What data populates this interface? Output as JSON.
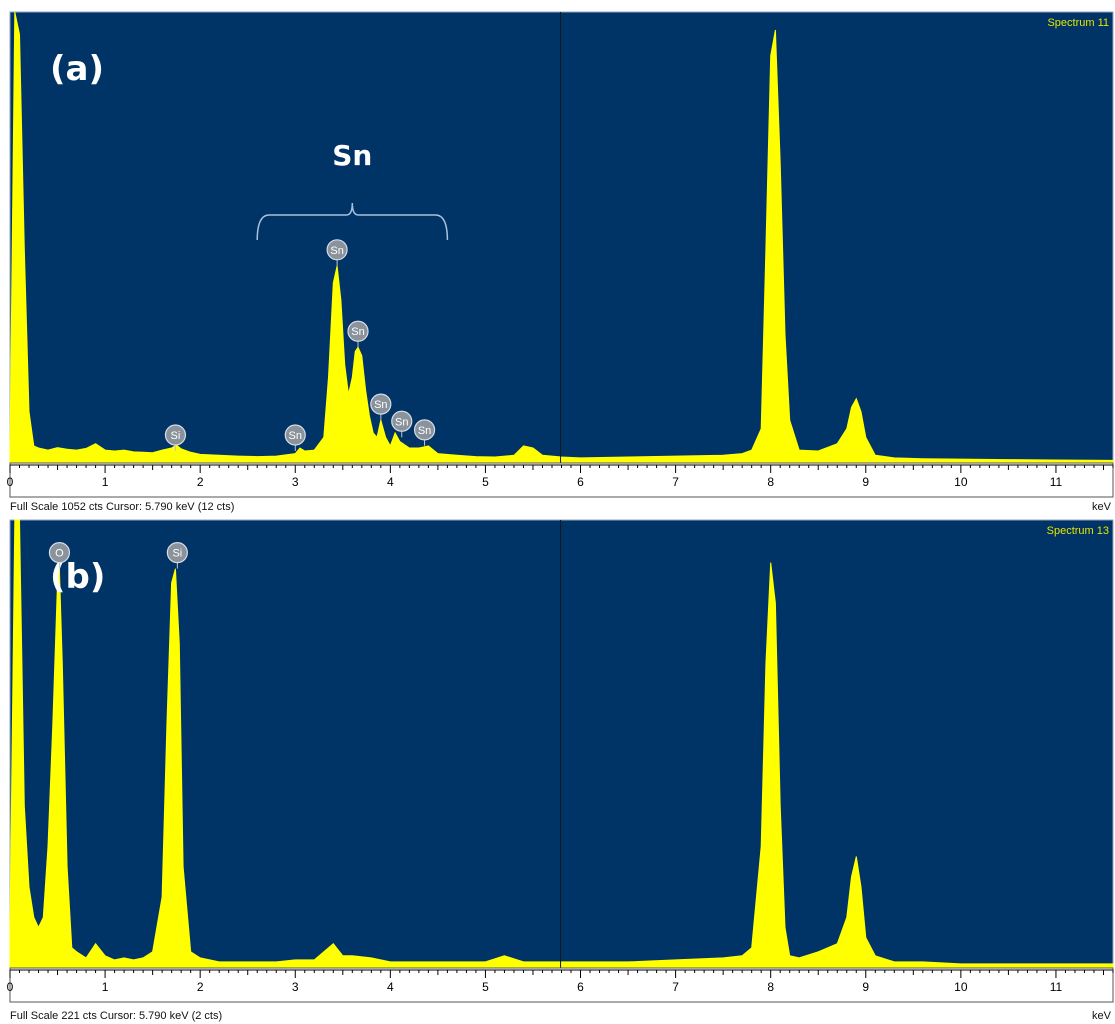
{
  "colors": {
    "plot_bg": "#003366",
    "spectrum": "#ffff00",
    "panel_border": "#8fa6c0",
    "label_text": "#ffffff",
    "spectrum_title": "#e6e600"
  },
  "chart_data": [
    {
      "type": "area",
      "panel_label": "(a)",
      "spectrum_name": "Spectrum 11",
      "xlabel": "keV",
      "xlim": [
        0,
        11.6
      ],
      "ylim": [
        0,
        1052
      ],
      "xticks": [
        "0",
        "1",
        "2",
        "3",
        "4",
        "5",
        "6",
        "7",
        "8",
        "9",
        "10",
        "11"
      ],
      "cursor_kev": 5.79,
      "footer": "Full Scale 1052 cts  Cursor: 5.790 keV (12 cts)",
      "group_label": {
        "text": "Sn",
        "x_start": 2.6,
        "x_end": 4.6
      },
      "series": [
        {
          "x": [
            0,
            0.05,
            0.1,
            0.15,
            0.2,
            0.25,
            0.3,
            0.4,
            0.5,
            0.6,
            0.7,
            0.8,
            0.9,
            1.0,
            1.1,
            1.2,
            1.3,
            1.4,
            1.5,
            1.6,
            1.7,
            1.75,
            1.8,
            1.9,
            2.0,
            2.2,
            2.4,
            2.6,
            2.8,
            3.0,
            3.05,
            3.1,
            3.2,
            3.3,
            3.35,
            3.4,
            3.44,
            3.48,
            3.52,
            3.56,
            3.6,
            3.63,
            3.66,
            3.7,
            3.74,
            3.78,
            3.82,
            3.86,
            3.9,
            3.95,
            4.0,
            4.05,
            4.1,
            4.2,
            4.3,
            4.4,
            4.5,
            4.7,
            4.9,
            5.1,
            5.3,
            5.4,
            5.5,
            5.6,
            5.8,
            6.0,
            6.5,
            7.0,
            7.5,
            7.7,
            7.8,
            7.9,
            7.95,
            8.0,
            8.05,
            8.1,
            8.15,
            8.2,
            8.3,
            8.5,
            8.7,
            8.8,
            8.85,
            8.9,
            8.95,
            9.0,
            9.1,
            9.3,
            9.6,
            10,
            10.5,
            11,
            11.6
          ],
          "y": [
            30,
            1052,
            1000,
            500,
            120,
            40,
            35,
            30,
            36,
            32,
            30,
            34,
            45,
            30,
            28,
            30,
            26,
            25,
            24,
            30,
            35,
            42,
            33,
            25,
            20,
            18,
            16,
            15,
            16,
            22,
            35,
            28,
            30,
            60,
            200,
            420,
            460,
            380,
            230,
            160,
            200,
            260,
            270,
            250,
            170,
            110,
            70,
            60,
            100,
            60,
            40,
            70,
            50,
            35,
            35,
            40,
            22,
            18,
            15,
            14,
            18,
            40,
            35,
            18,
            14,
            12,
            14,
            16,
            18,
            22,
            30,
            80,
            500,
            950,
            1010,
            700,
            300,
            100,
            30,
            28,
            45,
            80,
            130,
            150,
            120,
            60,
            18,
            12,
            10,
            9,
            8,
            7,
            6
          ]
        }
      ],
      "peak_labels": [
        {
          "text": "Si",
          "x": 1.74,
          "y": 28
        },
        {
          "text": "Sn",
          "x": 3.0,
          "y": 28
        },
        {
          "text": "Sn",
          "x": 3.44,
          "y": 460
        },
        {
          "text": "Sn",
          "x": 3.66,
          "y": 270
        },
        {
          "text": "Sn",
          "x": 3.9,
          "y": 100
        },
        {
          "text": "Sn",
          "x": 4.12,
          "y": 60
        },
        {
          "text": "Sn",
          "x": 4.36,
          "y": 40
        }
      ]
    },
    {
      "type": "area",
      "panel_label": "(b)",
      "spectrum_name": "Spectrum 13",
      "xlabel": "keV",
      "xlim": [
        0,
        11.6
      ],
      "ylim": [
        0,
        221
      ],
      "xticks": [
        "0",
        "1",
        "2",
        "3",
        "4",
        "5",
        "6",
        "7",
        "8",
        "9",
        "10",
        "11"
      ],
      "cursor_kev": 5.79,
      "footer": "Full Scale 221 cts  Cursor: 5.790 keV (2 cts)",
      "series": [
        {
          "x": [
            0,
            0.05,
            0.1,
            0.15,
            0.2,
            0.25,
            0.3,
            0.35,
            0.4,
            0.45,
            0.5,
            0.52,
            0.55,
            0.6,
            0.65,
            0.7,
            0.8,
            0.9,
            1.0,
            1.1,
            1.2,
            1.3,
            1.4,
            1.5,
            1.6,
            1.65,
            1.7,
            1.74,
            1.78,
            1.82,
            1.9,
            2.0,
            2.2,
            2.5,
            2.8,
            3.0,
            3.2,
            3.4,
            3.5,
            3.6,
            3.8,
            4.0,
            4.5,
            5.0,
            5.2,
            5.4,
            5.6,
            6.0,
            6.5,
            7.0,
            7.5,
            7.7,
            7.8,
            7.9,
            7.95,
            8.0,
            8.05,
            8.1,
            8.15,
            8.2,
            8.3,
            8.5,
            8.7,
            8.8,
            8.85,
            8.9,
            8.95,
            9.0,
            9.1,
            9.3,
            9.6,
            10,
            10.5,
            11,
            11.6
          ],
          "y": [
            20,
            221,
            221,
            80,
            40,
            25,
            20,
            25,
            60,
            120,
            190,
            197,
            150,
            50,
            10,
            8,
            5,
            12,
            6,
            4,
            5,
            4,
            5,
            8,
            35,
            120,
            190,
            197,
            160,
            50,
            8,
            5,
            3,
            3,
            3,
            4,
            4,
            12,
            6,
            6,
            5,
            3,
            3,
            3,
            6,
            3,
            3,
            3,
            3,
            4,
            5,
            6,
            10,
            60,
            150,
            200,
            180,
            80,
            20,
            6,
            5,
            8,
            12,
            25,
            45,
            55,
            40,
            15,
            6,
            3,
            3,
            2,
            2,
            2,
            2
          ]
        }
      ],
      "peak_labels": [
        {
          "text": "O",
          "x": 0.52,
          "y": 197
        },
        {
          "text": "Si",
          "x": 1.76,
          "y": 197
        }
      ]
    }
  ]
}
